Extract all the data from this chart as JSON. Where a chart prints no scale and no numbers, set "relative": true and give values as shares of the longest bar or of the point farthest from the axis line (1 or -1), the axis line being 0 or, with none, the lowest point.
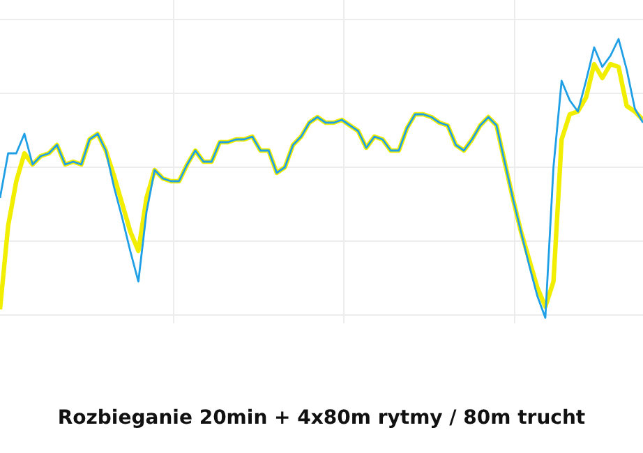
{
  "chart_data": {
    "type": "line",
    "title": "Rozbieganie 20min + 4x80m rytmy / 80m trucht",
    "relative": true,
    "grid": true,
    "legend": false,
    "marker": "none",
    "line_style": "solid",
    "categories": [
      null,
      null,
      null,
      null,
      null,
      null,
      null,
      null,
      null,
      null,
      null,
      null,
      null,
      null,
      null,
      null,
      null,
      null,
      null,
      null,
      null,
      null,
      null,
      null,
      null,
      null,
      null,
      null,
      null,
      null,
      null,
      null,
      null,
      null,
      null,
      null,
      null,
      null,
      null,
      null,
      null,
      null,
      null,
      null,
      null,
      null,
      null,
      null,
      null,
      null,
      null,
      null,
      null,
      null,
      null,
      null,
      null,
      null,
      null,
      null,
      null,
      null,
      null,
      null,
      null,
      null,
      null,
      null,
      null,
      null,
      null,
      null,
      null,
      null,
      null,
      null,
      null,
      null,
      null,
      null
    ],
    "series": [
      {
        "color": "#f2ee00",
        "values": [
          0.03,
          0.33,
          0.49,
          0.59,
          0.55,
          0.58,
          0.59,
          0.62,
          0.55,
          0.56,
          0.55,
          0.64,
          0.66,
          0.6,
          0.51,
          0.41,
          0.31,
          0.24,
          0.43,
          0.53,
          0.5,
          0.49,
          0.49,
          0.55,
          0.6,
          0.56,
          0.56,
          0.63,
          0.63,
          0.64,
          0.64,
          0.65,
          0.6,
          0.6,
          0.52,
          0.54,
          0.62,
          0.65,
          0.7,
          0.72,
          0.7,
          0.7,
          0.71,
          0.69,
          0.67,
          0.61,
          0.65,
          0.64,
          0.6,
          0.6,
          0.68,
          0.73,
          0.73,
          0.72,
          0.7,
          0.69,
          0.62,
          0.6,
          0.64,
          0.69,
          0.72,
          0.69,
          0.56,
          0.43,
          0.31,
          0.21,
          0.11,
          0.04,
          0.13,
          0.64,
          0.73,
          0.74,
          0.79,
          0.91,
          0.86,
          0.91,
          0.9,
          0.76,
          0.74,
          0.71
        ]
      },
      {
        "color": "#1e9fe6",
        "values": [
          0.43,
          0.59,
          0.59,
          0.66,
          0.55,
          0.58,
          0.59,
          0.62,
          0.55,
          0.56,
          0.55,
          0.64,
          0.66,
          0.6,
          0.47,
          0.36,
          0.24,
          0.13,
          0.38,
          0.53,
          0.5,
          0.49,
          0.49,
          0.55,
          0.6,
          0.56,
          0.56,
          0.63,
          0.63,
          0.64,
          0.64,
          0.65,
          0.6,
          0.6,
          0.52,
          0.54,
          0.62,
          0.65,
          0.7,
          0.72,
          0.7,
          0.7,
          0.71,
          0.69,
          0.67,
          0.61,
          0.65,
          0.64,
          0.6,
          0.6,
          0.68,
          0.73,
          0.73,
          0.72,
          0.7,
          0.69,
          0.62,
          0.6,
          0.64,
          0.69,
          0.72,
          0.69,
          0.56,
          0.43,
          0.31,
          0.19,
          0.08,
          0,
          0.54,
          0.85,
          0.78,
          0.74,
          0.85,
          0.97,
          0.9,
          0.94,
          1,
          0.89,
          0.75,
          0.7
        ]
      }
    ]
  }
}
